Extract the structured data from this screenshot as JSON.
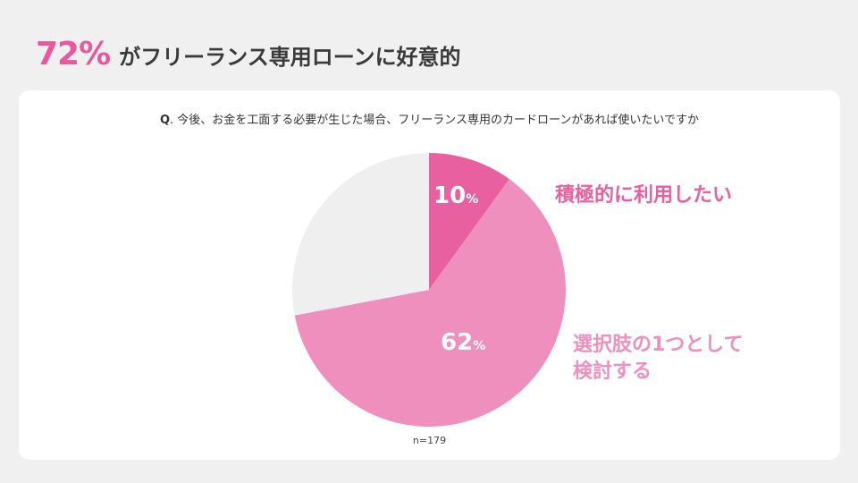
{
  "headline": {
    "percent": "72%",
    "text": "がフリーランス専用ローンに好意的"
  },
  "question": {
    "prefix": "Q",
    "text": ". 今後、お金を工面する必要が生じた場合、フリーランス専用のカードローンがあれば使いたいですか"
  },
  "chart_data": {
    "type": "pie",
    "slices": [
      {
        "label": "積極的に利用したい",
        "value": 10,
        "value_label": "10",
        "color": "#e8609f"
      },
      {
        "label": "選択肢の1つとして検討する",
        "value": 62,
        "value_label": "62",
        "color": "#ef8fbd"
      },
      {
        "label": "",
        "value": 28,
        "value_label": "",
        "color": "#efefef"
      }
    ],
    "unit": "%",
    "n_label": "n=179"
  },
  "labels": {
    "cat1": "積極的に利用したい",
    "cat2_line1": "選択肢の1つとして",
    "cat2_line2": "検討する",
    "cat1_color": "#e8609f",
    "cat2_color": "#ef8fbd"
  }
}
